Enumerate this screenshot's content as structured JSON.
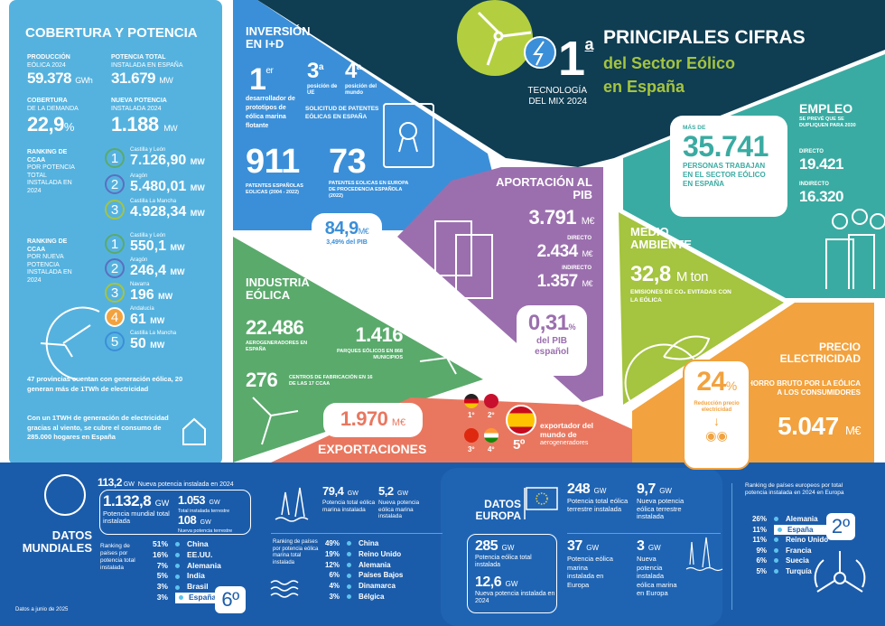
{
  "colors": {
    "cobertura": "#55b2df",
    "navy": "#0f3d52",
    "inversion": "#3b8fd8",
    "pib": "#9b6fae",
    "industria": "#5aaa6c",
    "exportaciones": "#e9775f",
    "empleo": "#3aaba2",
    "medio": "#a5c43f",
    "precio": "#f2a23e",
    "bottom": "#1b5caa",
    "lime": "#b3cf3f"
  },
  "header": {
    "rank": "1",
    "rank_sup": "a",
    "rank_caption": "TECNOLOGÍA DEL MIX 2024",
    "title": "PRINCIPALES CIFRAS",
    "subtitle1": "del Sector Eólico",
    "subtitle2": "en España",
    "icons": [
      "wind-turbine-icon",
      "lightning-icon"
    ]
  },
  "cobertura": {
    "title": "COBERTURA Y POTENCIA",
    "produccion": {
      "label_b": "PRODUCCIÓN",
      "label": "EÓLICA 2024",
      "value": "59.378",
      "unit": "GWh"
    },
    "potencia_total": {
      "label_b": "POTENCIA TOTAL",
      "label": "INSTALADA EN ESPAÑA",
      "value": "31.679",
      "unit": "MW"
    },
    "cobertura_demanda": {
      "label_b": "COBERTURA",
      "label": "DE LA DEMANDA",
      "value": "22,9",
      "unit": "%"
    },
    "nueva_potencia": {
      "label_b": "NUEVA POTENCIA",
      "label": "INSTALADA 2024",
      "value": "1.188",
      "unit": "MW"
    },
    "ranking_total": {
      "label_b": "RANKING DE CCAA",
      "label": "POR POTENCIA TOTAL INSTALADA EN 2024",
      "items": [
        {
          "n": "1",
          "region": "Castilla y León",
          "value": "7.126,90",
          "unit": "MW"
        },
        {
          "n": "2",
          "region": "Aragón",
          "value": "5.480,01",
          "unit": "MW"
        },
        {
          "n": "3",
          "region": "Castilla La Mancha",
          "value": "4.928,34",
          "unit": "MW"
        }
      ]
    },
    "ranking_nueva": {
      "label_b": "RANKING DE CCAA",
      "label": "POR NUEVA POTENCIA INSTALADA EN 2024",
      "items": [
        {
          "n": "1",
          "region": "Castilla y León",
          "value": "550,1",
          "unit": "MW"
        },
        {
          "n": "2",
          "region": "Aragón",
          "value": "246,4",
          "unit": "MW"
        },
        {
          "n": "3",
          "region": "Navarra",
          "value": "196",
          "unit": "MW"
        },
        {
          "n": "4",
          "region": "Andalucía",
          "value": "61",
          "unit": "MW"
        },
        {
          "n": "5",
          "region": "Castilla La Mancha",
          "value": "50",
          "unit": "MW"
        }
      ]
    },
    "note1": "47 provincias cuentan con generación eólica, 20 generan más de 1TWh de electricidad",
    "note2_a": "Con un 1TWH de generación de electricidad gracias al viento, se cubre el consumo de ",
    "note2_b": "285.000 hogares en España"
  },
  "inversion": {
    "title": "INVERSIÓN EN I+D",
    "first": "1",
    "first_sup": "er",
    "first_text": "desarrollador de prototipos de eólica marina flotante",
    "ue": "3",
    "ue_sup": "a",
    "ue_label": "posición de UE",
    "mundo": "4",
    "mundo_sup": "a",
    "mundo_label": "posición del mundo",
    "solicitud": "SOLICITUD DE PATENTES EÓLICAS EN ESPAÑA",
    "patentes": "911",
    "patentes_label": "PATENTES ESPAÑOLAS EOLICAS (2004 - 2022)",
    "europa": "73",
    "europa_label": "PATENTES EOLICAS EN EUROPA DE PROCEDENCIA ESPAÑOLA (2022)",
    "inversion_value": "84,9",
    "inversion_unit": "M€",
    "inversion_pib": "3,49% del PIB"
  },
  "pib": {
    "title": "APORTACIÓN AL PIB",
    "total": "3.791",
    "unit": "M€",
    "directo_label": "DIRECTO",
    "directo": "2.434",
    "indirecto_label": "INDIRECTO",
    "indirecto": "1.357",
    "pct": "0,31",
    "pct_unit": "%",
    "pct_label": "del PIB español"
  },
  "empleo": {
    "title": "EMPLEO",
    "forecast": "SE PREVÉ QUE SE DUPLIQUEN PARA 2030",
    "mas_de": "MÁS DE",
    "total": "35.741",
    "total_label": "PERSONAS TRABAJAN EN EL SECTOR EÓLICO EN ESPAÑA",
    "directo_label": "DIRECTO",
    "directo": "19.421",
    "indirecto_label": "INDIRECTO",
    "indirecto": "16.320"
  },
  "medio": {
    "title": "MEDIO AMBIENTE",
    "value": "32,8",
    "unit": "M ton",
    "label": "EMISIONES DE CO₂ EVITADAS CON LA EÓLICA"
  },
  "industria": {
    "title": "INDUSTRIA EÓLICA",
    "aero": "22.486",
    "aero_label": "AEROGENERADORES EN ESPAÑA",
    "parques": "1.416",
    "parques_label": "PARQUES EÓLICOS EN 868 MUNICIPIOS",
    "centros": "276",
    "centros_label": "CENTROS DE FABRICACIÓN EN 16 DE LAS 17 CCAA"
  },
  "exportaciones": {
    "value": "1.970",
    "unit": "M€",
    "title": "EXPORTACIONES",
    "ranks": [
      "1º",
      "2º",
      "3º",
      "4º"
    ],
    "spain_rank": "5º",
    "spain_text_b": "exportador del mundo de",
    "spain_text": "aerogeneradores"
  },
  "precio": {
    "title": "PRECIO ELECTRICIDAD",
    "pct": "24",
    "pct_unit": "%",
    "pct_label": "Reducción precio electricidad",
    "ahorro_label": "AHORRO BRUTO POR LA EÓLICA A LOS CONSUMIDORES",
    "ahorro": "5.047",
    "unit": "M€"
  },
  "mundial": {
    "title": "DATOS MUNDIALES",
    "nueva": "113,2",
    "nueva_unit": "GW",
    "nueva_label": "Nueva potencia instalada en 2024",
    "total": "1.132,8",
    "total_unit": "GW",
    "total_label": "Potencia mundial total instalada",
    "terrestre": "1.053",
    "terrestre_unit": "GW",
    "terrestre_label": "Total instalada terrestre",
    "nueva_terrestre": "108",
    "nueva_terrestre_unit": "GW",
    "nueva_terrestre_label": "Nueva potencia terrestre",
    "ranking_label": "Ranking de países por potencia total instalada",
    "ranking": [
      {
        "pct": "51%",
        "country": "China"
      },
      {
        "pct": "16%",
        "country": "EE.UU."
      },
      {
        "pct": "7%",
        "country": "Alemania"
      },
      {
        "pct": "5%",
        "country": "India"
      },
      {
        "pct": "3%",
        "country": "Brasil"
      },
      {
        "pct": "3%",
        "country": "España"
      }
    ],
    "spain_rank": "6º",
    "footnote": "Datos a junio de 2025"
  },
  "marina": {
    "total": "79,4",
    "total_unit": "GW",
    "total_label": "Potencia total eólica marina instalada",
    "nueva": "5,2",
    "nueva_unit": "GW",
    "nueva_label": "Nueva potencia eólica marina instalada",
    "ranking_label": "Ranking de países por potencia eólica marina total instalada",
    "ranking": [
      {
        "pct": "49%",
        "country": "China"
      },
      {
        "pct": "19%",
        "country": "Reino Unido"
      },
      {
        "pct": "12%",
        "country": "Alemania"
      },
      {
        "pct": "6%",
        "country": "Países Bajos"
      },
      {
        "pct": "4%",
        "country": "Dinamarca"
      },
      {
        "pct": "3%",
        "country": "Bélgica"
      }
    ]
  },
  "europa": {
    "title": "DATOS EUROPA",
    "total": "285",
    "total_label": "Potencia eólica total instalada",
    "nueva": "12,6",
    "nueva_label": "Nueva potencia instalada en 2024",
    "terrestre": "248",
    "terrestre_label": "Potencia total eólica terrestre instalada",
    "nueva_terrestre": "9,7",
    "nueva_terrestre_label": "Nueva potencia eólica terrestre instalada",
    "marina": "37",
    "marina_label": "Potencia eólica marina instalada en Europa",
    "nueva_marina": "3",
    "nueva_marina_label": "Nueva potencia instalada eólica marina en Europa",
    "unit": "GW",
    "ranking_label": "Ranking de países europeos por total potencia instalada en 2024 en Europa",
    "ranking": [
      {
        "pct": "26%",
        "country": "Alemania"
      },
      {
        "pct": "11%",
        "country": "España"
      },
      {
        "pct": "11%",
        "country": "Reino Unido"
      },
      {
        "pct": "9%",
        "country": "Francia"
      },
      {
        "pct": "6%",
        "country": "Suecia"
      },
      {
        "pct": "5%",
        "country": "Turquía"
      }
    ],
    "spain_rank": "2º"
  }
}
